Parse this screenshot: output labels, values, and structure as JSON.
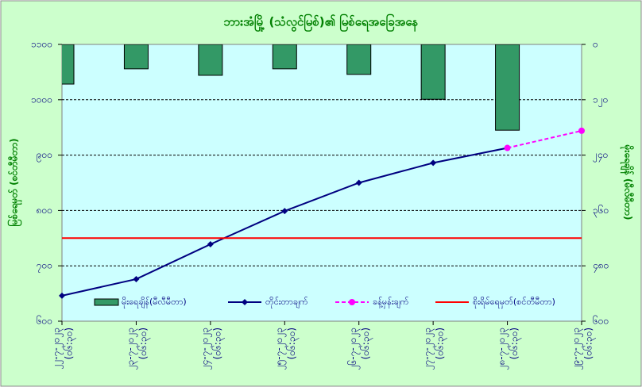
{
  "chart_data": {
    "type": "combo",
    "title": "ဘားအံမြို့ (သံလွင်မြစ်)၏ မြစ်ရေအခြေအနေ",
    "y_label": "မြစ်ရေမှတ် (စင်တီမီတာ)",
    "y2_label": "မိုးရေချိန် (မီလီမီတာ)",
    "categories": [
      [
        "၂၂-၇-၂၀၂၃",
        "(၀၆:၃၀)"
      ],
      [
        "၂၃-၇-၂၀၂၃",
        "(၀၆:၃၀)"
      ],
      [
        "၂၄-၇-၂၀၂၃",
        "(၀၆:၃၀)"
      ],
      [
        "၂၅-၇-၂၀၂၃",
        "(၀၆:၃၀)"
      ],
      [
        "၂၆-၇-၂၀၂၃",
        "(၀၆:၃၀)"
      ],
      [
        "၂၇-၇-၂၀၂၃",
        "(၀၆:၃၀)"
      ],
      [
        "၂၈-၇-၂၀၂၃",
        "(၀၆:၃၀)"
      ],
      [
        "၂၉-၇-၂၀၂၃",
        "(၀၆:၃၀)"
      ]
    ],
    "series": [
      {
        "name": "မိုးရေချိန်(မီလီမီတာ)",
        "kind": "bar",
        "axis": "y2",
        "color": "#339966",
        "values": [
          86,
          53,
          67,
          53,
          65,
          119,
          186,
          null
        ]
      },
      {
        "name": "တိုင်းတာချက်",
        "kind": "line",
        "color": "#000080",
        "values": [
          646,
          676,
          739,
          799,
          850,
          886,
          913,
          null
        ]
      },
      {
        "name": "ခန့်မှန်းချက်",
        "kind": "dashed",
        "color": "#ff00ff",
        "values": [
          null,
          null,
          null,
          null,
          null,
          null,
          913,
          944
        ]
      },
      {
        "name": "စိုးရိမ်ရေမှတ်(စင်တီမီတာ)",
        "kind": "plain",
        "color": "#ff0000",
        "values": [
          750,
          750,
          750,
          750,
          750,
          750,
          750,
          750
        ]
      }
    ],
    "ylim": [
      600,
      1100
    ],
    "yticks": [
      {
        "value": 600,
        "label": "၆၀၀"
      },
      {
        "value": 700,
        "label": "၇၀၀"
      },
      {
        "value": 800,
        "label": "၈၀၀"
      },
      {
        "value": 900,
        "label": "၉၀၀"
      },
      {
        "value": 1000,
        "label": "၁၀၀၀"
      },
      {
        "value": 1100,
        "label": "၁၁၀၀"
      }
    ],
    "y2lim": [
      0,
      600
    ],
    "y2_inverted": true,
    "y2ticks": [
      {
        "value": 0,
        "label": "၀"
      },
      {
        "value": 120,
        "label": "၁၂၀"
      },
      {
        "value": 240,
        "label": "၂၄၀"
      },
      {
        "value": 360,
        "label": "၃၆၀"
      },
      {
        "value": 480,
        "label": "၄၈၀"
      },
      {
        "value": 600,
        "label": "၆၀၀"
      }
    ],
    "grid": true
  }
}
